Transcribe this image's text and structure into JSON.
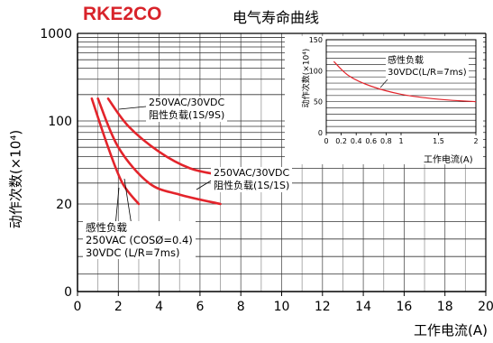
{
  "model": "RKE2CO",
  "title": "电气寿命曲线",
  "chart_data": [
    {
      "type": "line",
      "title": "电气寿命曲线",
      "xlabel": "工作电流(A)",
      "ylabel": "动作次数(×10⁴)",
      "xlim": [
        0,
        20
      ],
      "x_ticks": [
        "0",
        "2",
        "4",
        "6",
        "8",
        "10",
        "12",
        "14",
        "16",
        "18",
        "20"
      ],
      "y_ticks": [
        "1000",
        "100",
        "20",
        "0"
      ],
      "grid": true,
      "series": [
        {
          "name": "250VAC/30VDC 阻性负载(1S/9S)",
          "x": [
            1.5,
            2.5,
            4,
            5.5,
            7
          ],
          "y": [
            180,
            90,
            55,
            40,
            35
          ]
        },
        {
          "name": "250VAC/30VDC 阻性负载(1S/1S)",
          "x": [
            1.0,
            2.0,
            3.5,
            5,
            7
          ],
          "y": [
            180,
            60,
            30,
            24,
            20
          ]
        },
        {
          "name": "感性负载 250VAC (COSØ=0.4) 30VDC (L/R=7ms)",
          "x": [
            0.7,
            1.5,
            2.2,
            3
          ],
          "y": [
            180,
            60,
            30,
            20
          ]
        }
      ],
      "annotations": [
        [
          "250VAC/30VDC",
          "阻性负载(1S/9S)"
        ],
        [
          "250VAC/30VDC",
          "阻性负载(1S/1S)"
        ],
        [
          "感性负载",
          "250VAC (COSØ=0.4)",
          "30VDC (L/R=7ms)"
        ]
      ]
    },
    {
      "type": "line",
      "xlabel": "工作电流(A)",
      "ylabel": "动作次数(×10⁴)",
      "xlim": [
        0,
        2
      ],
      "ylim": [
        0,
        150
      ],
      "x_ticks": [
        "0",
        "0.2",
        "0.4",
        "0.6",
        "0.8",
        "1",
        "1.5",
        "2"
      ],
      "y_ticks": [
        "150",
        "100",
        "50",
        "0"
      ],
      "series": [
        {
          "name": "感性负载 30VDC(L/R=7ms)",
          "x": [
            0.1,
            0.3,
            0.6,
            1.0,
            1.5,
            2.0
          ],
          "y": [
            115,
            92,
            75,
            62,
            54,
            50
          ]
        }
      ],
      "annotations": [
        [
          "感性负载",
          "30VDC(L/R=7ms)"
        ]
      ]
    }
  ]
}
